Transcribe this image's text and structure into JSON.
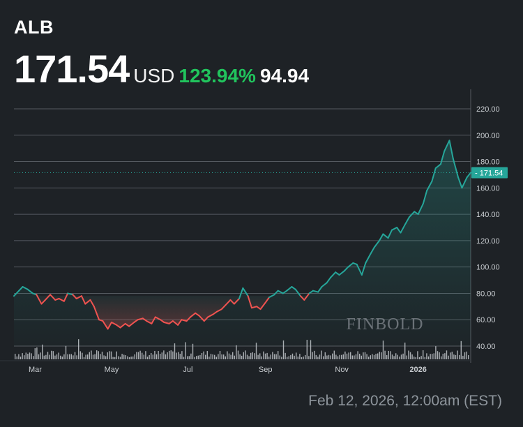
{
  "header": {
    "ticker": "ALB",
    "price": "171.54",
    "currency": "USD",
    "change_percent": "123.94%",
    "change_value": "94.94"
  },
  "footer": {
    "timestamp": "Feb 12, 2026, 12:00am (EST)"
  },
  "watermark": "FINBOLD",
  "colors": {
    "background": "#1e2226",
    "up": "#26a69a",
    "down": "#ef5350",
    "change_green": "#21c45d",
    "grid": "#555a60",
    "volume": "#c4c8cc"
  },
  "chart_data": {
    "type": "line",
    "y_axis_side": "right",
    "ylim": [
      34,
      228
    ],
    "y_ticks": [
      "220.00",
      "200.00",
      "180.00",
      "160.00",
      "140.00",
      "120.00",
      "100.00",
      "80.00",
      "60.00",
      "40.00"
    ],
    "x_ticks": [
      "Mar",
      "May",
      "Jul",
      "Sep",
      "Nov",
      "2026"
    ],
    "x_range": [
      "2025-02-12",
      "2026-02-12"
    ],
    "last_price_label": "171.54",
    "last_price": 171.54,
    "grid": true,
    "series": [
      {
        "points": [
          [
            "2025-02-12",
            78
          ],
          [
            "2025-02-16",
            82
          ],
          [
            "2025-02-19",
            85
          ],
          [
            "2025-02-23",
            83
          ],
          [
            "2025-02-27",
            80
          ],
          [
            "2025-03-02",
            79
          ],
          [
            "2025-03-06",
            72
          ],
          [
            "2025-03-09",
            75
          ],
          [
            "2025-03-13",
            79
          ],
          [
            "2025-03-17",
            75
          ],
          [
            "2025-03-20",
            76
          ],
          [
            "2025-03-24",
            74
          ],
          [
            "2025-03-27",
            80
          ],
          [
            "2025-03-31",
            79
          ],
          [
            "2025-04-03",
            76
          ],
          [
            "2025-04-07",
            78
          ],
          [
            "2025-04-10",
            72
          ],
          [
            "2025-04-14",
            75
          ],
          [
            "2025-04-17",
            70
          ],
          [
            "2025-04-21",
            60
          ],
          [
            "2025-04-24",
            59
          ],
          [
            "2025-04-28",
            53
          ],
          [
            "2025-05-01",
            58
          ],
          [
            "2025-05-05",
            56
          ],
          [
            "2025-05-08",
            54
          ],
          [
            "2025-05-12",
            57
          ],
          [
            "2025-05-15",
            55
          ],
          [
            "2025-05-19",
            58
          ],
          [
            "2025-05-22",
            60
          ],
          [
            "2025-05-26",
            61
          ],
          [
            "2025-05-29",
            59
          ],
          [
            "2025-06-02",
            57
          ],
          [
            "2025-06-05",
            62
          ],
          [
            "2025-06-09",
            60
          ],
          [
            "2025-06-12",
            58
          ],
          [
            "2025-06-16",
            57
          ],
          [
            "2025-06-19",
            59
          ],
          [
            "2025-06-23",
            56
          ],
          [
            "2025-06-26",
            60
          ],
          [
            "2025-06-30",
            59
          ],
          [
            "2025-07-03",
            62
          ],
          [
            "2025-07-07",
            65
          ],
          [
            "2025-07-10",
            63
          ],
          [
            "2025-07-14",
            59
          ],
          [
            "2025-07-17",
            62
          ],
          [
            "2025-07-21",
            64
          ],
          [
            "2025-07-24",
            66
          ],
          [
            "2025-07-28",
            68
          ],
          [
            "2025-07-31",
            71
          ],
          [
            "2025-08-04",
            75
          ],
          [
            "2025-08-07",
            72
          ],
          [
            "2025-08-11",
            76
          ],
          [
            "2025-08-14",
            84
          ],
          [
            "2025-08-18",
            78
          ],
          [
            "2025-08-21",
            69
          ],
          [
            "2025-08-25",
            70
          ],
          [
            "2025-08-28",
            68
          ],
          [
            "2025-09-01",
            73
          ],
          [
            "2025-09-04",
            77
          ],
          [
            "2025-09-08",
            79
          ],
          [
            "2025-09-11",
            82
          ],
          [
            "2025-09-15",
            80
          ],
          [
            "2025-09-18",
            82
          ],
          [
            "2025-09-22",
            85
          ],
          [
            "2025-09-25",
            83
          ],
          [
            "2025-09-29",
            78
          ],
          [
            "2025-10-02",
            75
          ],
          [
            "2025-10-06",
            80
          ],
          [
            "2025-10-09",
            82
          ],
          [
            "2025-10-13",
            81
          ],
          [
            "2025-10-16",
            85
          ],
          [
            "2025-10-20",
            88
          ],
          [
            "2025-10-23",
            92
          ],
          [
            "2025-10-27",
            96
          ],
          [
            "2025-10-30",
            94
          ],
          [
            "2025-11-03",
            97
          ],
          [
            "2025-11-06",
            100
          ],
          [
            "2025-11-10",
            103
          ],
          [
            "2025-11-13",
            102
          ],
          [
            "2025-11-17",
            94
          ],
          [
            "2025-11-20",
            103
          ],
          [
            "2025-11-24",
            110
          ],
          [
            "2025-11-27",
            115
          ],
          [
            "2025-12-01",
            120
          ],
          [
            "2025-12-04",
            125
          ],
          [
            "2025-12-08",
            122
          ],
          [
            "2025-12-11",
            128
          ],
          [
            "2025-12-15",
            130
          ],
          [
            "2025-12-18",
            126
          ],
          [
            "2025-12-22",
            133
          ],
          [
            "2025-12-25",
            138
          ],
          [
            "2025-12-29",
            142
          ],
          [
            "2026-01-01",
            140
          ],
          [
            "2026-01-05",
            148
          ],
          [
            "2026-01-08",
            158
          ],
          [
            "2026-01-12",
            165
          ],
          [
            "2026-01-15",
            175
          ],
          [
            "2026-01-19",
            178
          ],
          [
            "2026-01-22",
            188
          ],
          [
            "2026-01-26",
            196
          ],
          [
            "2026-01-29",
            182
          ],
          [
            "2026-02-02",
            168
          ],
          [
            "2026-02-05",
            160
          ],
          [
            "2026-02-09",
            168
          ],
          [
            "2026-02-12",
            171.54
          ]
        ]
      }
    ]
  }
}
